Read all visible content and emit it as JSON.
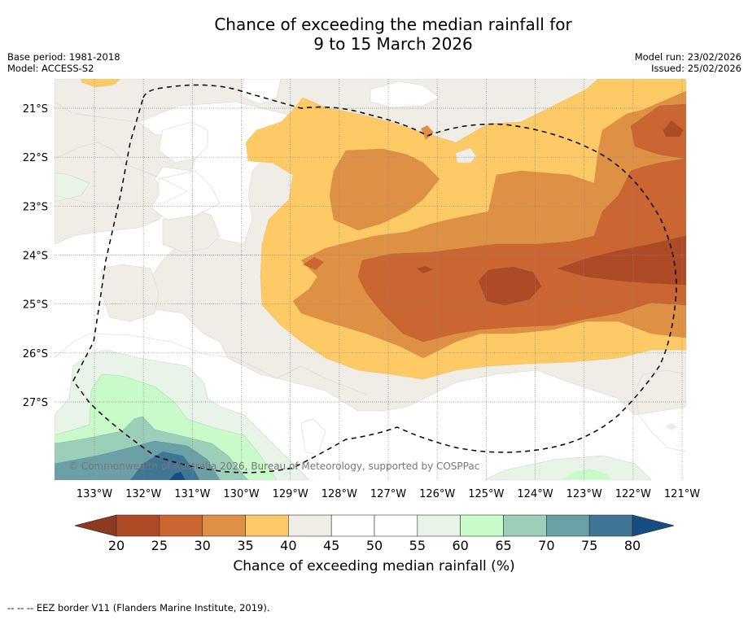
{
  "title": {
    "line1": "Chance of exceeding the median rainfall for",
    "line2": "9 to 15 March 2026"
  },
  "meta_left": {
    "base_period": "Base period: 1981-2018",
    "model": "Model: ACCESS-S2"
  },
  "meta_right": {
    "model_run": "Model run: 23/02/2026",
    "issued": "Issued: 25/02/2026"
  },
  "copyright": "© Commonwealth of Australia 2026, Bureau of Meteorology, supported by COSPPac",
  "footnote": "--  --  -- EEZ border V11 (Flanders Marine Institute, 2019).",
  "chart_data": {
    "type": "heatmap",
    "title": "Chance of exceeding the median rainfall for 9 to 15 March 2026",
    "xlabel": "",
    "ylabel": "",
    "x_ticks": [
      "133°W",
      "132°W",
      "131°W",
      "130°W",
      "129°W",
      "128°W",
      "127°W",
      "126°W",
      "125°W",
      "124°W",
      "123°W",
      "122°W",
      "121°W"
    ],
    "x_tick_values": [
      -133,
      -132,
      -131,
      -130,
      -129,
      -128,
      -127,
      -126,
      -125,
      -124,
      -123,
      -122,
      -121
    ],
    "y_ticks": [
      "21°S",
      "22°S",
      "23°S",
      "24°S",
      "25°S",
      "26°S",
      "27°S"
    ],
    "y_tick_values": [
      -21,
      -22,
      -23,
      -24,
      -25,
      -26,
      -27
    ],
    "xlim": [
      -133.8,
      -120.9
    ],
    "ylim": [
      -28.6,
      -20.4
    ],
    "grid": true,
    "colorbar": {
      "label": "Chance of exceeding median rainfall (%)",
      "ticks": [
        "20",
        "25",
        "30",
        "35",
        "40",
        "45",
        "50",
        "55",
        "60",
        "65",
        "70",
        "75",
        "80"
      ],
      "bins": [
        {
          "range": "<20",
          "color": "#8e3a20"
        },
        {
          "range": "20-25",
          "color": "#ae4a26"
        },
        {
          "range": "25-30",
          "color": "#cb6532"
        },
        {
          "range": "30-35",
          "color": "#de9144"
        },
        {
          "range": "35-40",
          "color": "#fdca65"
        },
        {
          "range": "40-45",
          "color": "#f0ece6"
        },
        {
          "range": "45-50",
          "color": "#ffffff"
        },
        {
          "range": "50-55",
          "color": "#ffffff"
        },
        {
          "range": "55-60",
          "color": "#e9f4e9"
        },
        {
          "range": "60-65",
          "color": "#c9fac9"
        },
        {
          "range": "65-70",
          "color": "#9ccfb9"
        },
        {
          "range": "70-75",
          "color": "#6ca0a7"
        },
        {
          "range": "75-80",
          "color": "#3f7696"
        },
        {
          "range": ">80",
          "color": "#164d84"
        }
      ]
    },
    "regions": [
      {
        "name": "central-east dry core",
        "approx_lon": [
          -128.5,
          -121
        ],
        "approx_lat": [
          -21.5,
          -26.2
        ],
        "value_range": "20-35"
      },
      {
        "name": "strong dry centre",
        "approx_lon": [
          -125,
          -124
        ],
        "approx_lat": [
          -24.3,
          -25
        ],
        "value_range": "20-25"
      },
      {
        "name": "north-east dry patch",
        "approx_lon": [
          -122,
          -121
        ],
        "approx_lat": [
          -21,
          -22
        ],
        "value_range": "20-30"
      },
      {
        "name": "south-west wet area",
        "approx_lon": [
          -133.8,
          -129
        ],
        "approx_lat": [
          -26.5,
          -28.6
        ],
        "value_range": "55-80+"
      }
    ],
    "overlays": [
      "EEZ border (dashed line)"
    ]
  }
}
